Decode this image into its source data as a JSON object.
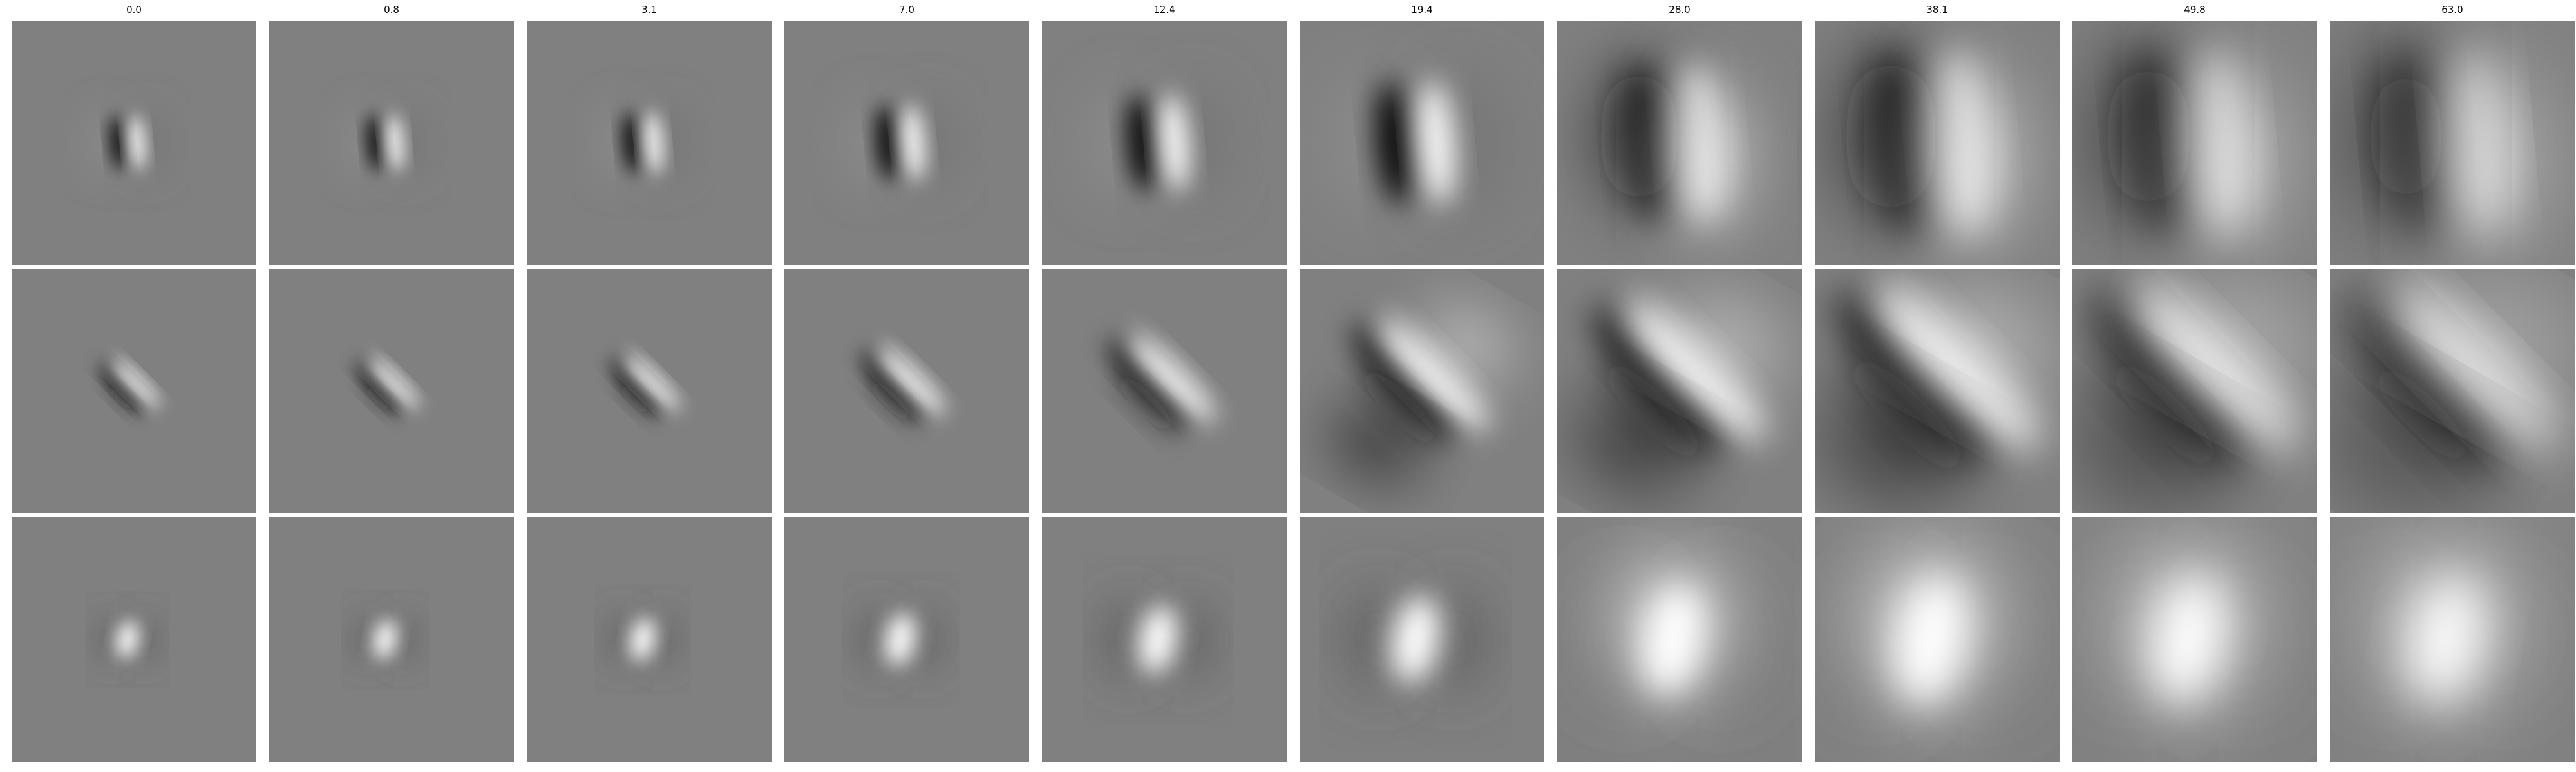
{
  "figure": {
    "column_titles": [
      "0.0",
      "0.8",
      "3.1",
      "7.0",
      "12.4",
      "19.4",
      "28.0",
      "38.1",
      "49.8",
      "63.0"
    ],
    "row_count": 3,
    "colors": {
      "background": "#ffffff",
      "neutral_gray": "#808080"
    }
  }
}
